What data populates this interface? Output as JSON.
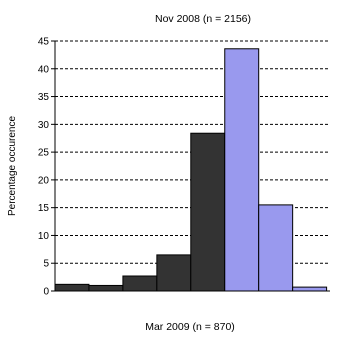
{
  "chart_data": {
    "type": "bar",
    "title": "Nov 2008 (n = 2156)",
    "bottom_title": "Mar 2009 (n = 870)",
    "ylabel": "Percentage occurence",
    "xlabel": "",
    "ylim": [
      0,
      45
    ],
    "yticks": [
      0,
      5,
      10,
      15,
      20,
      25,
      30,
      35,
      40,
      45
    ],
    "grid": true,
    "series": [
      {
        "color": "#333333",
        "values": [
          1.2,
          1.0,
          2.7,
          6.5,
          28.4
        ]
      },
      {
        "color": "#9999ee",
        "values": [
          43.6,
          15.5,
          0.7
        ]
      }
    ],
    "colors": {
      "dark_bars": "#333333",
      "light_bars": "#9999ee"
    }
  }
}
